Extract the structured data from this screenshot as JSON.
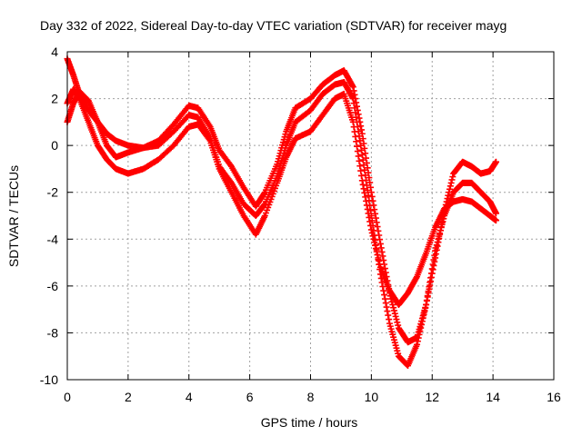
{
  "chart_data": {
    "type": "scatter",
    "title": "Day 332 of 2022, Sidereal Day-to-day VTEC variation (SDTVAR) for receiver mayg",
    "xlabel": "GPS time / hours",
    "ylabel": "SDTVAR / TECUs",
    "xlim": [
      0,
      16
    ],
    "ylim": [
      -10,
      4
    ],
    "xticks": [
      0,
      2,
      4,
      6,
      8,
      10,
      12,
      14,
      16
    ],
    "yticks": [
      -10,
      -8,
      -6,
      -4,
      -2,
      0,
      2,
      4
    ],
    "grid": true,
    "marker": "plus",
    "color": "#ff0000",
    "series": [
      {
        "x": [
          0.0,
          0.2,
          0.4,
          0.7,
          1.0,
          1.3,
          1.6,
          2.0,
          2.5,
          3.0,
          3.5,
          4.0,
          4.3,
          4.7,
          5.0,
          5.4,
          5.8,
          6.2,
          6.5,
          6.9,
          7.2,
          7.5,
          8.0,
          8.4,
          8.8,
          9.1,
          9.4,
          9.7,
          10.0,
          10.3,
          10.6,
          10.9,
          11.2,
          11.5,
          11.8,
          12.1,
          12.4,
          12.7,
          13.0,
          13.3,
          13.6,
          13.9,
          14.1
        ],
        "y": [
          3.7,
          3.0,
          2.2,
          1.5,
          1.0,
          0.5,
          0.2,
          0.0,
          -0.1,
          0.2,
          0.9,
          1.7,
          1.6,
          0.8,
          -0.2,
          -0.9,
          -1.8,
          -2.6,
          -2.0,
          -0.8,
          0.6,
          1.6,
          2.0,
          2.6,
          3.0,
          3.2,
          2.5,
          0.5,
          -2.0,
          -4.2,
          -6.3,
          -7.8,
          -8.4,
          -8.2,
          -6.8,
          -4.8,
          -2.8,
          -1.2,
          -0.7,
          -0.9,
          -1.2,
          -1.1,
          -0.7
        ]
      },
      {
        "x": [
          0.0,
          0.2,
          0.4,
          0.7,
          1.0,
          1.3,
          1.6,
          2.0,
          2.5,
          3.0,
          3.5,
          4.0,
          4.3,
          4.7,
          5.0,
          5.4,
          5.8,
          6.2,
          6.5,
          6.9,
          7.2,
          7.5,
          8.0,
          8.4,
          8.8,
          9.1,
          9.4,
          9.7,
          10.0,
          10.3,
          10.6,
          10.9,
          11.2,
          11.5,
          11.8,
          12.1,
          12.4,
          12.7,
          13.0,
          13.3,
          13.6,
          13.9,
          14.1
        ],
        "y": [
          1.0,
          1.8,
          2.3,
          1.9,
          1.0,
          0.0,
          -0.5,
          -0.3,
          -0.1,
          0.0,
          0.6,
          1.3,
          1.2,
          0.3,
          -0.9,
          -1.6,
          -2.5,
          -3.0,
          -2.5,
          -1.3,
          0.0,
          1.0,
          1.5,
          2.2,
          2.6,
          2.7,
          2.0,
          -0.4,
          -3.0,
          -5.5,
          -7.6,
          -9.0,
          -9.4,
          -8.5,
          -6.8,
          -4.5,
          -3.0,
          -2.0,
          -1.6,
          -1.6,
          -2.0,
          -2.4,
          -2.9
        ]
      },
      {
        "x": [
          0.0,
          0.2,
          0.4,
          0.7,
          1.0,
          1.3,
          1.6,
          2.0,
          2.5,
          3.0,
          3.5,
          4.0,
          4.3,
          4.7,
          5.0,
          5.4,
          5.8,
          6.2,
          6.5,
          6.9,
          7.2,
          7.5,
          8.0,
          8.4,
          8.8,
          9.1,
          9.4,
          9.7,
          10.0,
          10.3,
          10.6,
          10.9,
          11.2,
          11.5,
          11.8,
          12.1,
          12.4,
          12.7,
          13.0,
          13.3,
          13.6,
          13.9,
          14.1
        ],
        "y": [
          1.8,
          2.4,
          2.0,
          1.0,
          0.0,
          -0.6,
          -1.0,
          -1.2,
          -1.0,
          -0.6,
          0.0,
          0.8,
          0.9,
          0.2,
          -1.0,
          -2.0,
          -3.0,
          -3.8,
          -3.0,
          -1.6,
          -0.5,
          0.3,
          0.6,
          1.3,
          2.0,
          2.2,
          1.0,
          -1.5,
          -3.6,
          -5.2,
          -6.2,
          -6.8,
          -6.3,
          -5.6,
          -4.6,
          -3.5,
          -2.7,
          -2.4,
          -2.3,
          -2.4,
          -2.7,
          -3.0,
          -3.2
        ]
      }
    ]
  }
}
